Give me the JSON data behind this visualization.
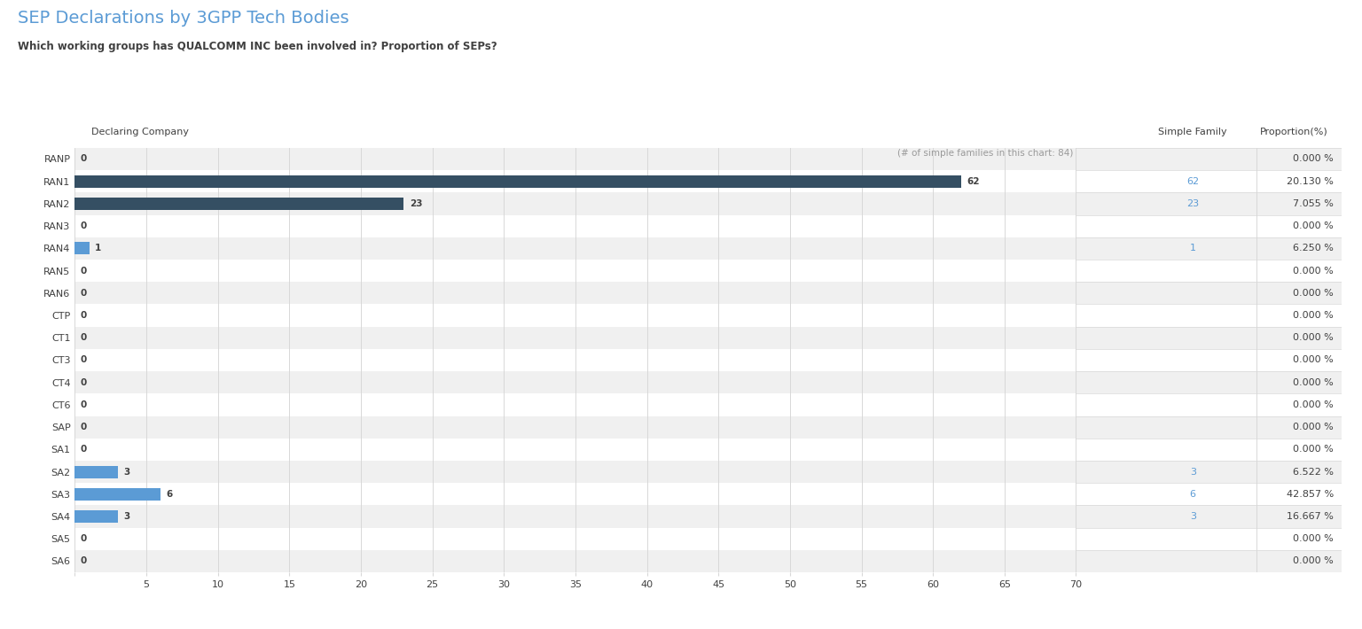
{
  "title": "SEP Declarations by 3GPP Tech Bodies",
  "subtitle": "Which working groups has QUALCOMM INC been involved in? Proportion of SEPs?",
  "title_color": "#5b9bd5",
  "subtitle_color": "#404040",
  "categories": [
    "RANP",
    "RAN1",
    "RAN2",
    "RAN3",
    "RAN4",
    "RAN5",
    "RAN6",
    "CTP",
    "CT1",
    "CT3",
    "CT4",
    "CT6",
    "SAP",
    "SA1",
    "SA2",
    "SA3",
    "SA4",
    "SA5",
    "SA6"
  ],
  "values": [
    0,
    62,
    23,
    0,
    1,
    0,
    0,
    0,
    0,
    0,
    0,
    0,
    0,
    0,
    3,
    6,
    3,
    0,
    0
  ],
  "simple_family": [
    null,
    62,
    23,
    null,
    1,
    null,
    null,
    null,
    null,
    null,
    null,
    null,
    null,
    null,
    3,
    6,
    3,
    null,
    null
  ],
  "proportions": [
    "0.000 %",
    "20.130 %",
    "7.055 %",
    "0.000 %",
    "6.250 %",
    "0.000 %",
    "0.000 %",
    "0.000 %",
    "0.000 %",
    "0.000 %",
    "0.000 %",
    "0.000 %",
    "0.000 %",
    "0.000 %",
    "6.522 %",
    "42.857 %",
    "16.667 %",
    "0.000 %",
    "0.000 %"
  ],
  "bar_color_dark": "#354f63",
  "bar_color_light": "#5b9bd5",
  "header_bg": "#e8e8e8",
  "row_alt_bg": "#f0f0f0",
  "row_bg": "#ffffff",
  "grid_color": "#d8d8d8",
  "link_color": "#5b9bd5",
  "text_color": "#404040",
  "annotation_color": "#999999",
  "xlim": [
    0,
    70
  ],
  "xticks": [
    0,
    5,
    10,
    15,
    20,
    25,
    30,
    35,
    40,
    45,
    50,
    55,
    60,
    65,
    70
  ],
  "chart_note": "(# of simple families in this chart: 84)",
  "col_header_declaring": "Declaring Company",
  "col_header_family": "Simple Family",
  "col_header_proportion": "Proportion(%)"
}
